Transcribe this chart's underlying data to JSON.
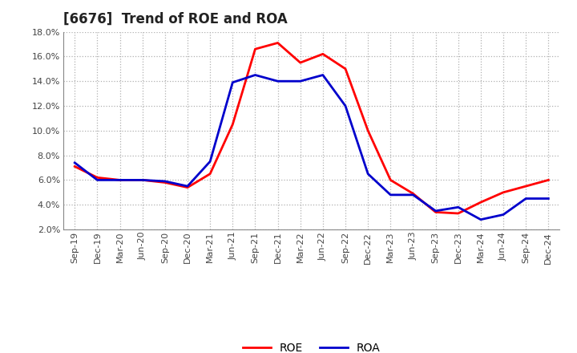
{
  "title": "[6676]  Trend of ROE and ROA",
  "x_labels": [
    "Sep-19",
    "Dec-19",
    "Mar-20",
    "Jun-20",
    "Sep-20",
    "Dec-20",
    "Mar-21",
    "Jun-21",
    "Sep-21",
    "Dec-21",
    "Mar-22",
    "Jun-22",
    "Sep-22",
    "Dec-22",
    "Mar-23",
    "Jun-23",
    "Sep-23",
    "Dec-23",
    "Mar-24",
    "Jun-24",
    "Sep-24",
    "Dec-24"
  ],
  "roe": [
    7.1,
    6.2,
    6.0,
    6.0,
    5.8,
    5.4,
    6.5,
    10.5,
    16.6,
    17.1,
    15.5,
    16.2,
    15.0,
    10.0,
    6.0,
    4.9,
    3.4,
    3.3,
    4.2,
    5.0,
    5.5,
    6.0
  ],
  "roa": [
    7.4,
    6.0,
    6.0,
    6.0,
    5.9,
    5.5,
    7.5,
    13.9,
    14.5,
    14.0,
    14.0,
    14.5,
    12.0,
    6.5,
    4.8,
    4.8,
    3.5,
    3.8,
    2.8,
    3.2,
    4.5,
    4.5
  ],
  "roe_color": "#ff0000",
  "roa_color": "#0000cc",
  "ylim": [
    2.0,
    18.0
  ],
  "yticks": [
    2.0,
    4.0,
    6.0,
    8.0,
    10.0,
    12.0,
    14.0,
    16.0,
    18.0
  ],
  "background_color": "#ffffff",
  "plot_bg_color": "#ffffff",
  "grid_color": "#b0b0b0",
  "title_fontsize": 12,
  "tick_fontsize": 8,
  "legend_fontsize": 10,
  "line_width": 2.0
}
